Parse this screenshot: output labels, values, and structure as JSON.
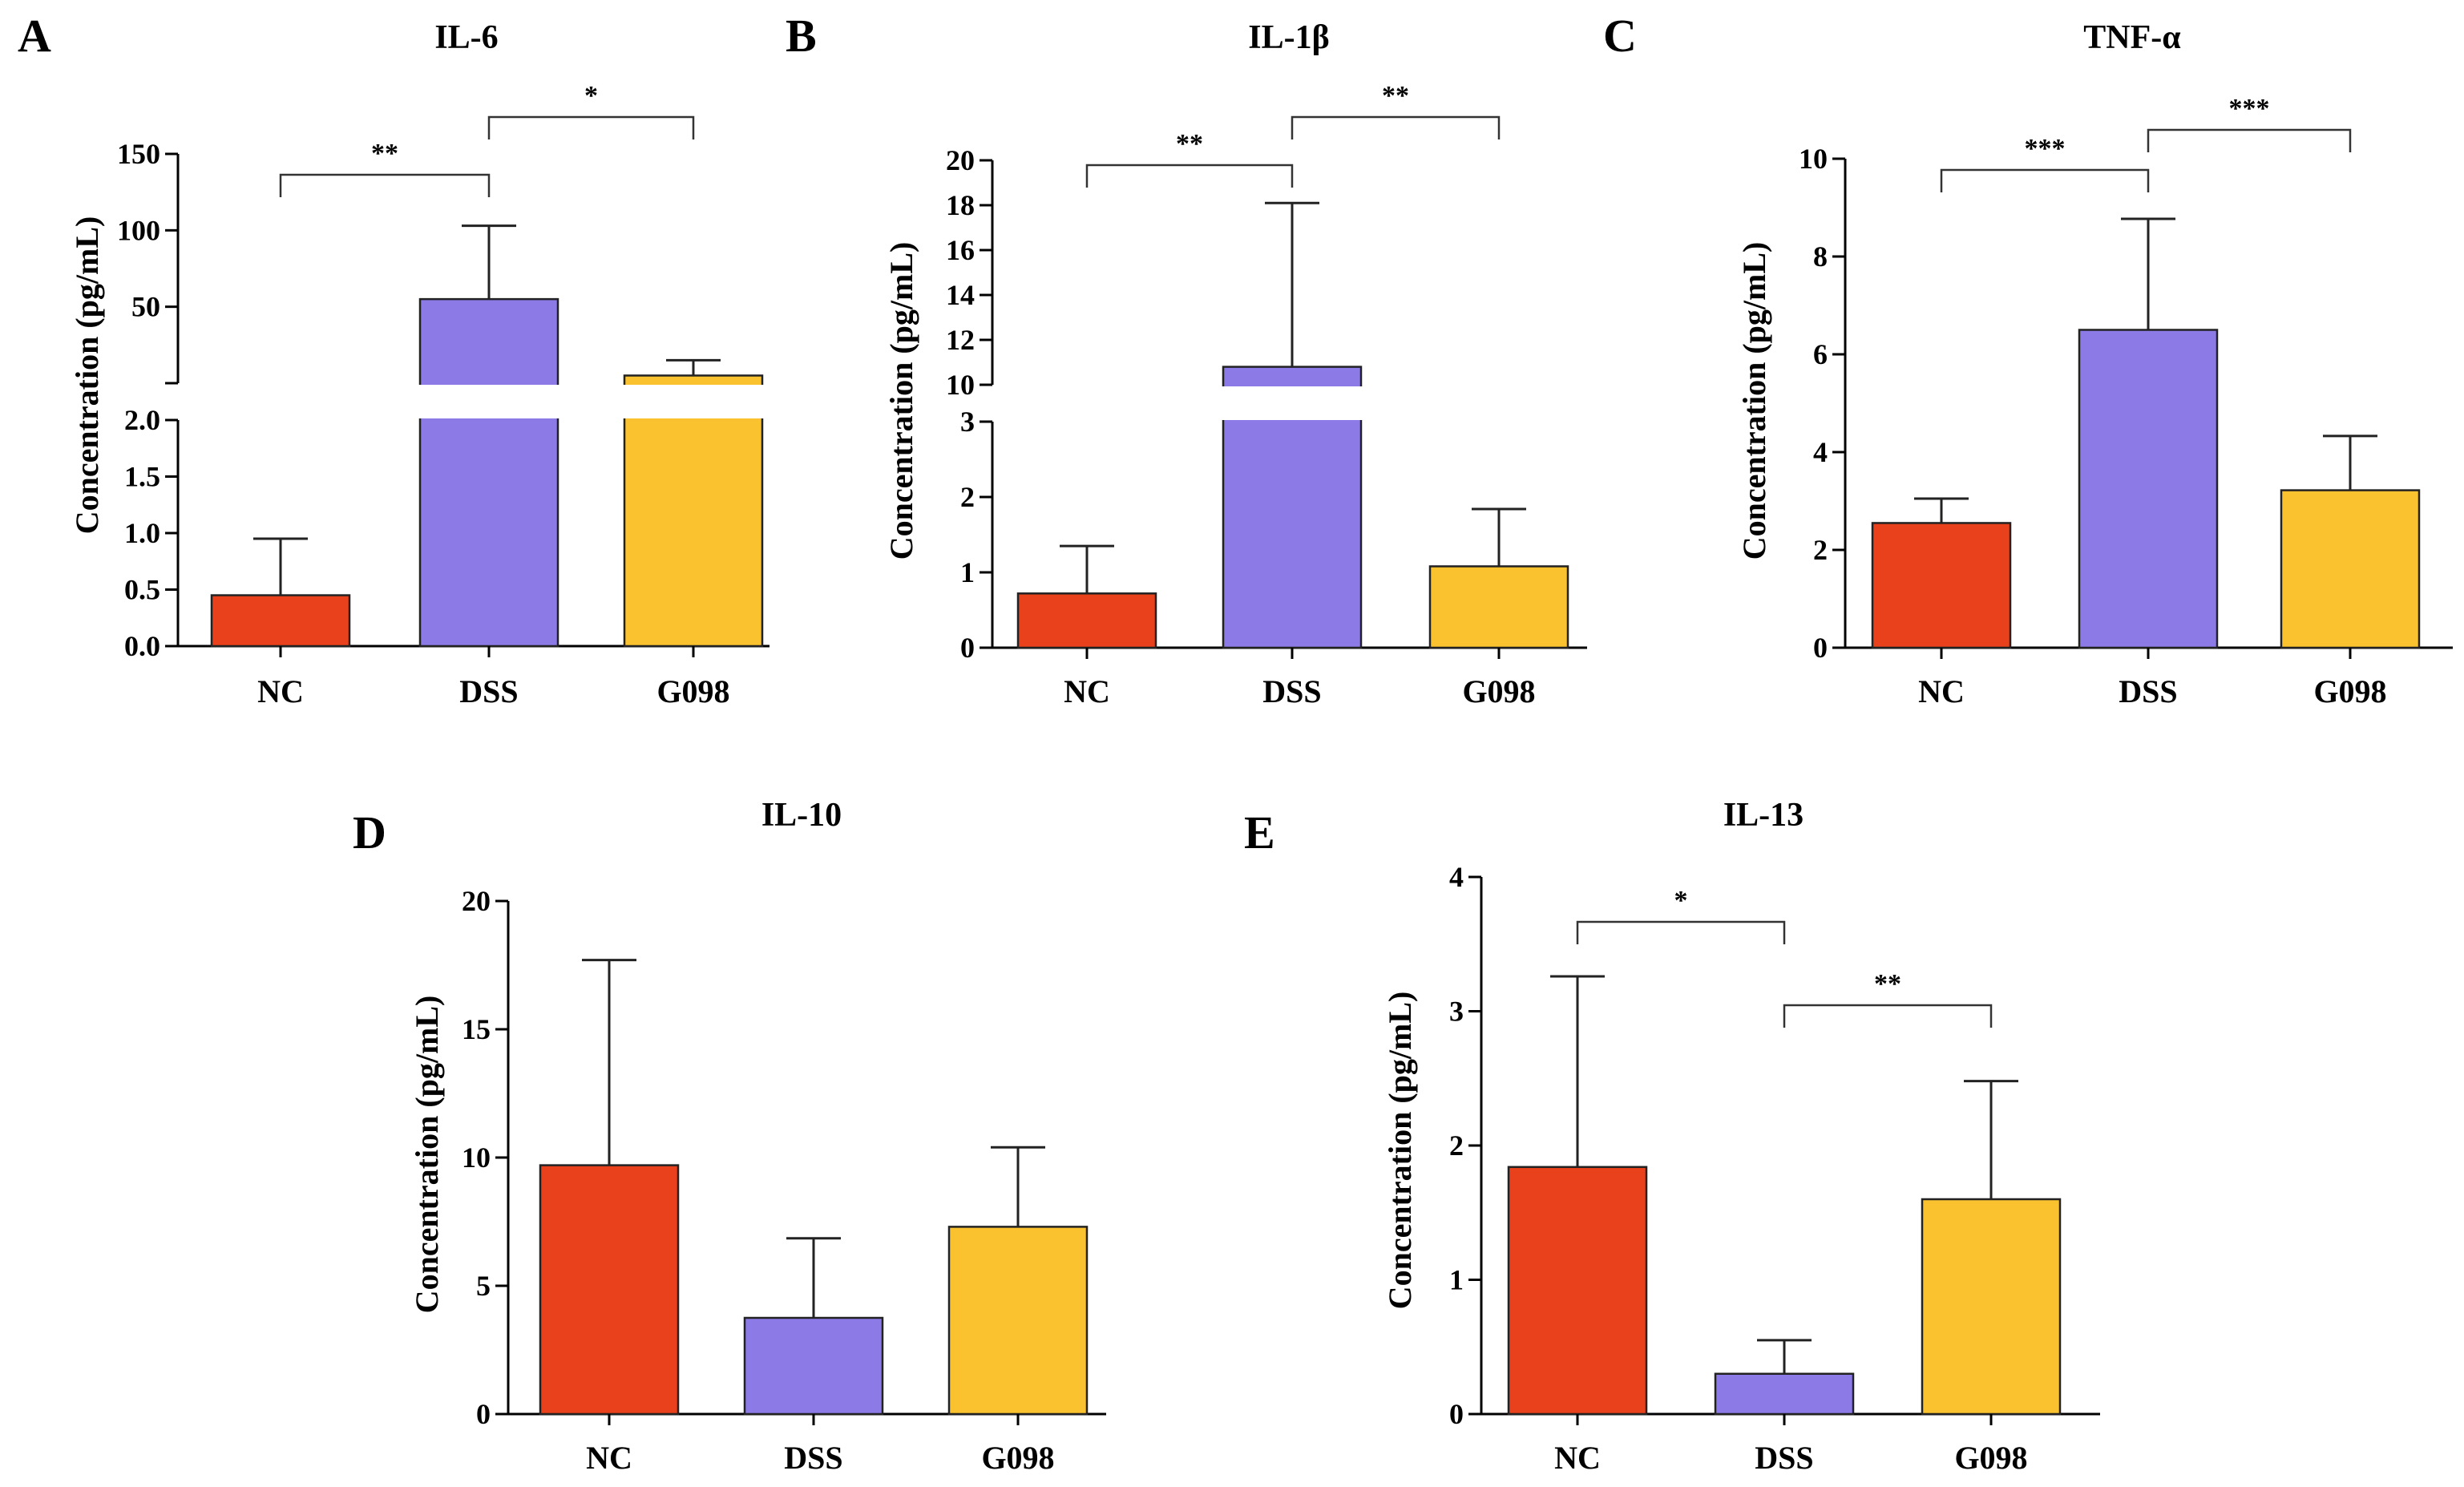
{
  "chart_data": [
    {
      "panel": "A",
      "type": "bar",
      "title": "IL-6",
      "ylabel": "Concentration (pg/mL)",
      "categories": [
        "NC",
        "DSS",
        "G098"
      ],
      "values": [
        0.45,
        55,
        5
      ],
      "errors": [
        0.5,
        48,
        10
      ],
      "broken_axis": true,
      "lower_range": [
        0,
        2
      ],
      "lower_ticks": [
        "0.0",
        "0.5",
        "1.0",
        "1.5",
        "2.0"
      ],
      "upper_range": [
        0,
        150
      ],
      "upper_ticks": [
        "50",
        "100",
        "150"
      ],
      "colors": [
        "#E8411B",
        "#8C7BE6",
        "#F9C22E"
      ],
      "significance": [
        {
          "from": 0,
          "to": 1,
          "label": "**"
        },
        {
          "from": 1,
          "to": 2,
          "label": "*"
        }
      ]
    },
    {
      "panel": "B",
      "type": "bar",
      "title": "IL-1β",
      "ylabel": "Concentration (pg/mL)",
      "categories": [
        "NC",
        "DSS",
        "G098"
      ],
      "values": [
        0.72,
        10.8,
        1.08
      ],
      "errors": [
        0.63,
        7.3,
        0.76
      ],
      "broken_axis": true,
      "lower_range": [
        0,
        3
      ],
      "lower_ticks": [
        "0",
        "1",
        "2",
        "3"
      ],
      "upper_range": [
        10,
        20
      ],
      "upper_ticks": [
        "10",
        "12",
        "14",
        "16",
        "18",
        "20"
      ],
      "colors": [
        "#E8411B",
        "#8C7BE6",
        "#F9C22E"
      ],
      "significance": [
        {
          "from": 0,
          "to": 1,
          "label": "**"
        },
        {
          "from": 1,
          "to": 2,
          "label": "**"
        }
      ]
    },
    {
      "panel": "C",
      "type": "bar",
      "title": "TNF-α",
      "ylabel": "Concentration (pg/mL)",
      "categories": [
        "NC",
        "DSS",
        "G098"
      ],
      "values": [
        2.55,
        6.5,
        3.22
      ],
      "errors": [
        0.5,
        2.27,
        1.11
      ],
      "ylim": [
        0,
        10
      ],
      "ticks": [
        "0",
        "2",
        "4",
        "6",
        "8",
        "10"
      ],
      "colors": [
        "#E8411B",
        "#8C7BE6",
        "#F9C22E"
      ],
      "significance": [
        {
          "from": 0,
          "to": 1,
          "label": "***"
        },
        {
          "from": 1,
          "to": 2,
          "label": "***"
        }
      ]
    },
    {
      "panel": "D",
      "type": "bar",
      "title": "IL-10",
      "ylabel": "Concentration (pg/mL)",
      "categories": [
        "NC",
        "DSS",
        "G098"
      ],
      "values": [
        9.7,
        3.75,
        7.3
      ],
      "errors": [
        8.0,
        3.1,
        3.1
      ],
      "ylim": [
        0,
        20
      ],
      "ticks": [
        "0",
        "5",
        "10",
        "15",
        "20"
      ],
      "colors": [
        "#E8411B",
        "#8C7BE6",
        "#F9C22E"
      ],
      "significance": []
    },
    {
      "panel": "E",
      "type": "bar",
      "title": "IL-13",
      "ylabel": "Concentration (pg/mL)",
      "categories": [
        "NC",
        "DSS",
        "G098"
      ],
      "values": [
        1.84,
        0.3,
        1.6
      ],
      "errors": [
        1.42,
        0.25,
        0.88
      ],
      "ylim": [
        0,
        4
      ],
      "ticks": [
        "0",
        "1",
        "2",
        "3",
        "4"
      ],
      "colors": [
        "#E8411B",
        "#8C7BE6",
        "#F9C22E"
      ],
      "significance": [
        {
          "from": 0,
          "to": 1,
          "label": "*"
        },
        {
          "from": 1,
          "to": 2,
          "label": "**"
        }
      ]
    }
  ]
}
